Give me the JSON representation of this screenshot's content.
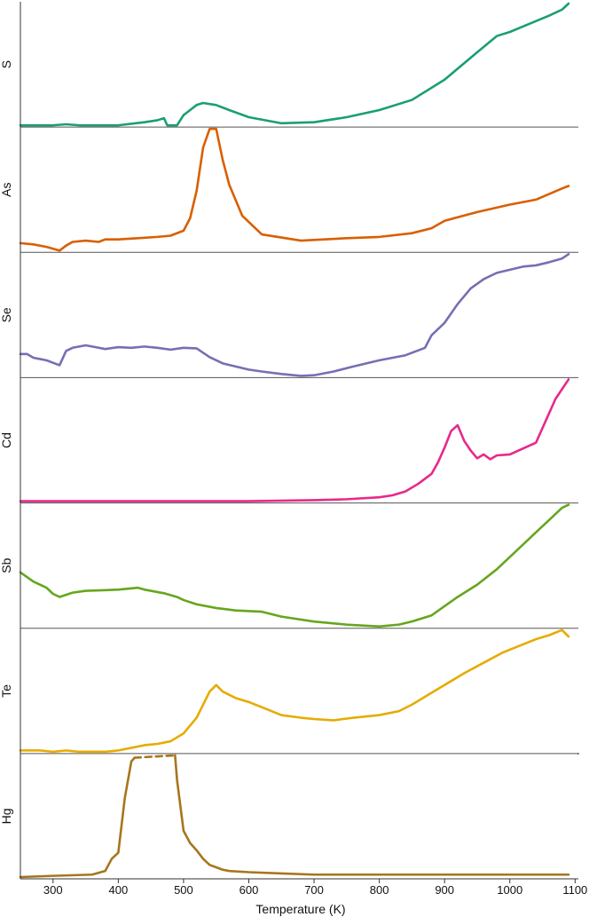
{
  "chart_data": {
    "type": "line",
    "xlabel": "Temperature (K)",
    "x_ticks": [
      300,
      400,
      500,
      600,
      700,
      800,
      900,
      1000,
      1100
    ],
    "x_domain": [
      250,
      1105
    ],
    "grid": false,
    "legend": "none",
    "panel_order": [
      "S",
      "As",
      "Se",
      "Cd",
      "Sb",
      "Te",
      "Hg"
    ],
    "series": [
      {
        "name": "S",
        "color": "#1b9e77",
        "x": [
          250,
          300,
          320,
          340,
          400,
          440,
          460,
          470,
          475,
          480,
          490,
          500,
          510,
          520,
          530,
          550,
          570,
          600,
          650,
          700,
          750,
          800,
          850,
          900,
          950,
          980,
          1000,
          1030,
          1060,
          1080,
          1090
        ],
        "y": [
          0,
          0,
          0.01,
          0,
          0,
          0.03,
          0.05,
          0.07,
          0.0,
          0.0,
          0.0,
          0.1,
          0.15,
          0.2,
          0.22,
          0.2,
          0.15,
          0.08,
          0.02,
          0.03,
          0.08,
          0.15,
          0.25,
          0.45,
          0.72,
          0.88,
          0.92,
          1.0,
          1.08,
          1.14,
          1.2
        ],
        "gaps": []
      },
      {
        "name": "As",
        "color": "#d95f02",
        "x": [
          250,
          270,
          290,
          310,
          320,
          330,
          350,
          370,
          380,
          400,
          430,
          460,
          480,
          500,
          510,
          520,
          530,
          540,
          550,
          560,
          570,
          590,
          620,
          680,
          750,
          800,
          850,
          880,
          900,
          950,
          1000,
          1040,
          1080,
          1090
        ],
        "y": [
          0.08,
          0.07,
          0.05,
          0.02,
          0.06,
          0.09,
          0.1,
          0.09,
          0.11,
          0.11,
          0.12,
          0.13,
          0.14,
          0.18,
          0.28,
          0.5,
          0.85,
          1.0,
          1.0,
          0.75,
          0.55,
          0.3,
          0.15,
          0.1,
          0.12,
          0.13,
          0.16,
          0.2,
          0.26,
          0.33,
          0.39,
          0.43,
          0.52,
          0.54
        ],
        "gaps": []
      },
      {
        "name": "Se",
        "color": "#7570b3",
        "x": [
          250,
          260,
          270,
          280,
          290,
          300,
          310,
          320,
          330,
          350,
          370,
          380,
          400,
          420,
          440,
          460,
          480,
          500,
          520,
          540,
          560,
          580,
          600,
          620,
          650,
          680,
          700,
          730,
          760,
          800,
          840,
          870,
          880,
          900,
          920,
          940,
          960,
          980,
          1000,
          1020,
          1040,
          1060,
          1080,
          1090
        ],
        "y": [
          0.4,
          0.4,
          0.34,
          0.32,
          0.3,
          0.26,
          0.22,
          0.45,
          0.5,
          0.54,
          0.5,
          0.48,
          0.51,
          0.5,
          0.52,
          0.5,
          0.47,
          0.5,
          0.49,
          0.35,
          0.25,
          0.2,
          0.15,
          0.12,
          0.08,
          0.05,
          0.06,
          0.12,
          0.2,
          0.3,
          0.38,
          0.5,
          0.7,
          0.9,
          1.2,
          1.45,
          1.6,
          1.7,
          1.75,
          1.8,
          1.82,
          1.87,
          1.93,
          2.0
        ],
        "gaps": []
      },
      {
        "name": "Cd",
        "color": "#e7298a",
        "x": [
          250,
          400,
          600,
          700,
          750,
          800,
          820,
          840,
          860,
          880,
          890,
          900,
          910,
          920,
          930,
          940,
          950,
          960,
          970,
          980,
          1000,
          1020,
          1040,
          1060,
          1070,
          1080,
          1090
        ],
        "y": [
          0,
          0,
          0,
          0.01,
          0.02,
          0.04,
          0.06,
          0.1,
          0.18,
          0.28,
          0.4,
          0.55,
          0.72,
          0.78,
          0.62,
          0.52,
          0.44,
          0.48,
          0.43,
          0.47,
          0.48,
          0.54,
          0.6,
          0.9,
          1.05,
          1.15,
          1.25
        ],
        "gaps": []
      },
      {
        "name": "Sb",
        "color": "#66a61e",
        "x": [
          250,
          270,
          290,
          300,
          310,
          330,
          350,
          380,
          400,
          420,
          430,
          440,
          450,
          470,
          490,
          500,
          520,
          550,
          580,
          620,
          650,
          700,
          750,
          800,
          830,
          850,
          880,
          900,
          920,
          950,
          980,
          1000,
          1020,
          1040,
          1060,
          1080,
          1090
        ],
        "y": [
          1.0,
          0.85,
          0.75,
          0.65,
          0.6,
          0.67,
          0.7,
          0.71,
          0.72,
          0.74,
          0.75,
          0.72,
          0.7,
          0.66,
          0.6,
          0.55,
          0.48,
          0.42,
          0.38,
          0.36,
          0.28,
          0.2,
          0.15,
          0.12,
          0.15,
          0.2,
          0.3,
          0.45,
          0.6,
          0.8,
          1.05,
          1.25,
          1.45,
          1.65,
          1.85,
          2.05,
          2.1
        ],
        "gaps": []
      },
      {
        "name": "Te",
        "color": "#e6ab02",
        "x": [
          250,
          280,
          300,
          320,
          340,
          380,
          400,
          420,
          440,
          460,
          480,
          500,
          520,
          540,
          550,
          560,
          580,
          600,
          620,
          650,
          680,
          700,
          730,
          760,
          800,
          830,
          850,
          870,
          900,
          930,
          960,
          990,
          1020,
          1040,
          1060,
          1080,
          1090
        ],
        "y": [
          0.05,
          0.05,
          0.04,
          0.05,
          0.04,
          0.04,
          0.05,
          0.07,
          0.09,
          0.1,
          0.12,
          0.18,
          0.3,
          0.5,
          0.55,
          0.5,
          0.45,
          0.42,
          0.38,
          0.32,
          0.3,
          0.29,
          0.28,
          0.3,
          0.32,
          0.35,
          0.4,
          0.46,
          0.55,
          0.64,
          0.72,
          0.8,
          0.86,
          0.9,
          0.93,
          0.97,
          0.92
        ],
        "gaps": []
      },
      {
        "name": "Hg",
        "color": "#a6761d",
        "x": [
          250,
          300,
          360,
          380,
          390,
          400,
          410,
          420,
          425,
          487,
          490,
          500,
          510,
          520,
          530,
          540,
          550,
          560,
          570,
          600,
          650,
          700,
          800,
          900,
          1000,
          1090
        ],
        "y": [
          0.0,
          0.01,
          0.02,
          0.05,
          0.15,
          0.2,
          0.65,
          0.95,
          0.98,
          1.0,
          0.8,
          0.38,
          0.28,
          0.22,
          0.15,
          0.1,
          0.08,
          0.06,
          0.05,
          0.04,
          0.03,
          0.02,
          0.02,
          0.02,
          0.02,
          0.02
        ],
        "gaps": [
          [
            425,
            487
          ]
        ]
      }
    ]
  }
}
